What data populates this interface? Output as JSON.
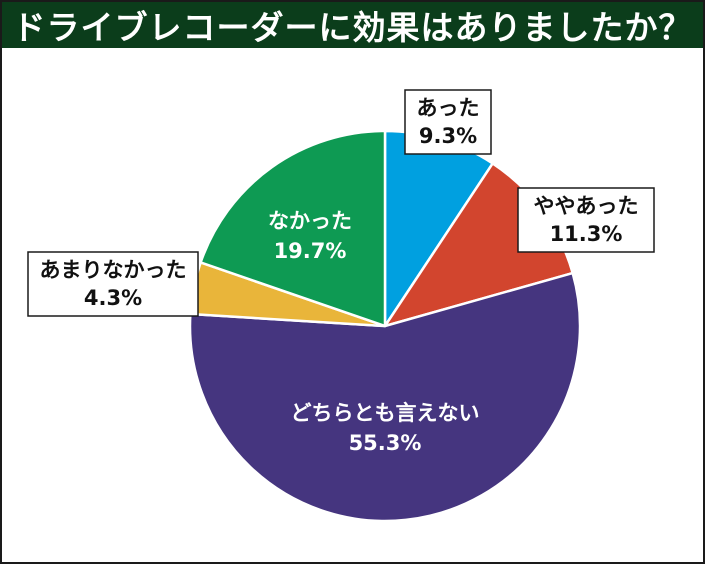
{
  "chart_data": {
    "type": "pie",
    "title": "ドライブレコーダーに効果はありましたか？",
    "slices": [
      {
        "label": "あった",
        "value": 9.3,
        "display": "9.3%",
        "color": "#00a0e0"
      },
      {
        "label": "ややあった",
        "value": 11.3,
        "display": "11.3%",
        "color": "#d2452e"
      },
      {
        "label": "どちらとも言えない",
        "value": 55.3,
        "display": "55.3%",
        "color": "#45357f"
      },
      {
        "label": "あまりなかった",
        "value": 4.3,
        "display": "4.3%",
        "color": "#e9b53a"
      },
      {
        "label": "なかった",
        "value": 19.7,
        "display": "19.7%",
        "color": "#0e9a53"
      }
    ],
    "start": "12 o'clock",
    "direction": "clockwise",
    "legend": "none"
  }
}
